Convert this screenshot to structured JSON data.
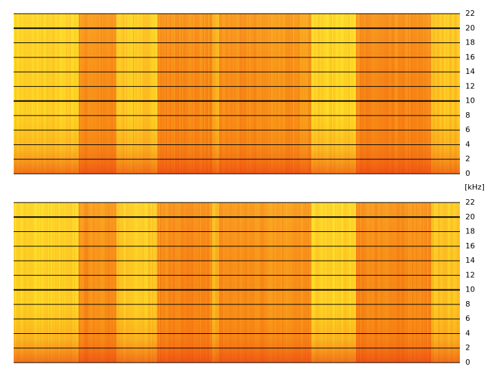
{
  "chart_data": [
    {
      "type": "spectrogram",
      "ylim": [
        0,
        22
      ],
      "yticks": [
        0,
        2,
        4,
        6,
        8,
        10,
        12,
        14,
        16,
        18,
        20,
        22
      ],
      "major_yticks": [
        10,
        20
      ],
      "grid": true,
      "y_label": "[kHz]"
    },
    {
      "type": "spectrogram",
      "ylim": [
        0,
        22
      ],
      "yticks": [
        0,
        2,
        4,
        6,
        8,
        10,
        12,
        14,
        16,
        18,
        20,
        22
      ],
      "major_yticks": [
        10,
        20
      ],
      "grid": true
    }
  ]
}
